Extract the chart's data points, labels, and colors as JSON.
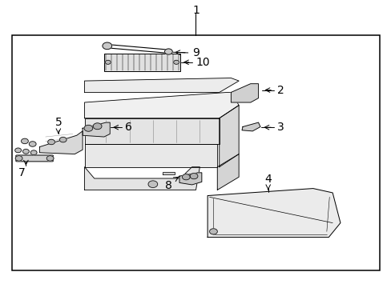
{
  "bg_color": "#ffffff",
  "border_color": "#000000",
  "line_color": "#000000",
  "text_color": "#000000",
  "fig_width": 4.89,
  "fig_height": 3.6,
  "dpi": 100,
  "outer_border": [
    0.03,
    0.06,
    0.94,
    0.82
  ]
}
